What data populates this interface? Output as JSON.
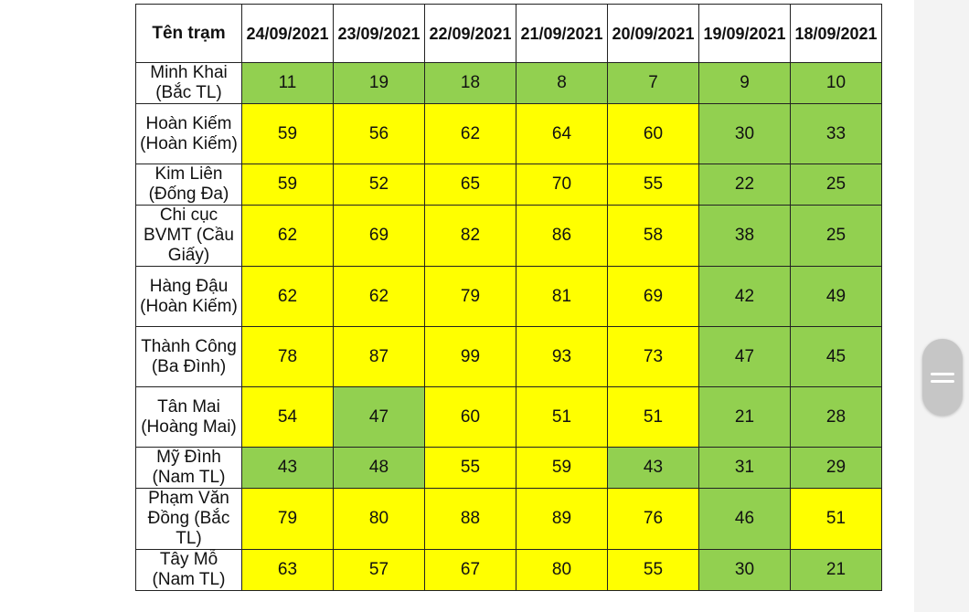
{
  "table": {
    "header": {
      "station": "Tên trạm",
      "dates": [
        "24/09/2021",
        "23/09/2021",
        "22/09/2021",
        "21/09/2021",
        "20/09/2021",
        "19/09/2021",
        "18/09/2021"
      ]
    },
    "rows": [
      {
        "station": "Minh Khai (Bắc TL)",
        "values": [
          "11",
          "19",
          "18",
          "8",
          "7",
          "9",
          "10"
        ],
        "levels": [
          "good",
          "good",
          "good",
          "good",
          "good",
          "good",
          "good"
        ]
      },
      {
        "station": "Hoàn Kiếm (Hoàn Kiếm)",
        "values": [
          "59",
          "56",
          "62",
          "64",
          "60",
          "30",
          "33"
        ],
        "levels": [
          "moderate",
          "moderate",
          "moderate",
          "moderate",
          "moderate",
          "good",
          "good"
        ]
      },
      {
        "station": "Kim Liên (Đống Đa)",
        "values": [
          "59",
          "52",
          "65",
          "70",
          "55",
          "22",
          "25"
        ],
        "levels": [
          "moderate",
          "moderate",
          "moderate",
          "moderate",
          "moderate",
          "good",
          "good"
        ]
      },
      {
        "station": "Chi cục BVMT (Cầu Giấy)",
        "values": [
          "62",
          "69",
          "82",
          "86",
          "58",
          "38",
          "25"
        ],
        "levels": [
          "moderate",
          "moderate",
          "moderate",
          "moderate",
          "moderate",
          "good",
          "good"
        ]
      },
      {
        "station": "Hàng Đậu (Hoàn Kiếm)",
        "values": [
          "62",
          "62",
          "79",
          "81",
          "69",
          "42",
          "49"
        ],
        "levels": [
          "moderate",
          "moderate",
          "moderate",
          "moderate",
          "moderate",
          "good",
          "good"
        ]
      },
      {
        "station": "Thành Công (Ba Đình)",
        "values": [
          "78",
          "87",
          "99",
          "93",
          "73",
          "47",
          "45"
        ],
        "levels": [
          "moderate",
          "moderate",
          "moderate",
          "moderate",
          "moderate",
          "good",
          "good"
        ]
      },
      {
        "station": "Tân Mai (Hoàng Mai)",
        "values": [
          "54",
          "47",
          "60",
          "51",
          "51",
          "21",
          "28"
        ],
        "levels": [
          "moderate",
          "good",
          "moderate",
          "moderate",
          "moderate",
          "good",
          "good"
        ]
      },
      {
        "station": "Mỹ Đình (Nam TL)",
        "values": [
          "43",
          "48",
          "55",
          "59",
          "43",
          "31",
          "29"
        ],
        "levels": [
          "good",
          "good",
          "moderate",
          "moderate",
          "good",
          "good",
          "good"
        ]
      },
      {
        "station": "Phạm Văn Đồng (Bắc TL)",
        "values": [
          "79",
          "80",
          "88",
          "89",
          "76",
          "46",
          "51"
        ],
        "levels": [
          "moderate",
          "moderate",
          "moderate",
          "moderate",
          "moderate",
          "good",
          "moderate"
        ]
      },
      {
        "station": "Tây Mỗ (Nam TL)",
        "values": [
          "63",
          "57",
          "67",
          "80",
          "55",
          "30",
          "21"
        ],
        "levels": [
          "moderate",
          "moderate",
          "moderate",
          "moderate",
          "moderate",
          "good",
          "good"
        ]
      }
    ]
  },
  "colors": {
    "good": "#92d050",
    "moderate": "#ffff00"
  },
  "scroll_handle": {
    "icon": "drag-handle-icon"
  }
}
